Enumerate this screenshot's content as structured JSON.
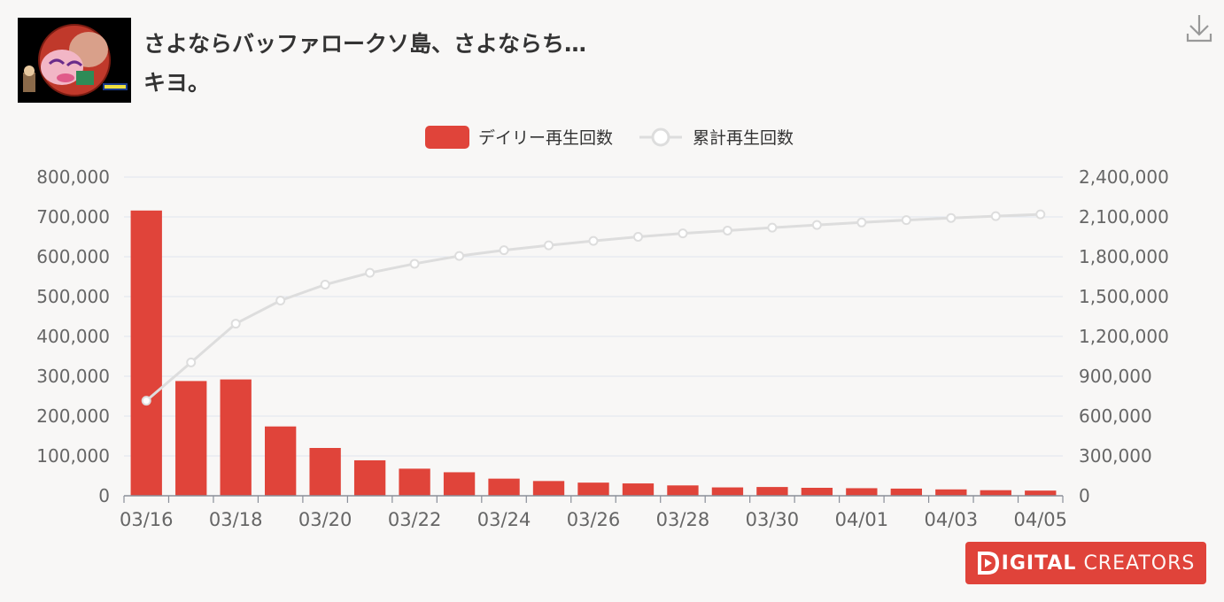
{
  "video": {
    "title_line1": "さよならバッファロークソ島、さよならち…",
    "title_line2": "キヨ。"
  },
  "icons": {
    "download": "download-icon",
    "thumbnail": "video-thumbnail"
  },
  "brand": {
    "logo_bold": "IGITAL",
    "logo_light": "CREATORS",
    "color": "#e0433a"
  },
  "chart_data": {
    "type": "bar",
    "categories": [
      "03/16",
      "03/17",
      "03/18",
      "03/19",
      "03/20",
      "03/21",
      "03/22",
      "03/23",
      "03/24",
      "03/25",
      "03/26",
      "03/27",
      "03/28",
      "03/29",
      "03/30",
      "03/31",
      "04/01",
      "04/02",
      "04/03",
      "04/04",
      "04/05"
    ],
    "x_tick_labels": [
      "03/16",
      "03/18",
      "03/20",
      "03/22",
      "03/24",
      "03/26",
      "03/28",
      "03/30",
      "04/01",
      "04/03",
      "04/05"
    ],
    "series": [
      {
        "name": "デイリー再生回数",
        "type": "bar",
        "axis": "left",
        "color": "#e0443a",
        "values": [
          716000,
          288000,
          292000,
          174000,
          120000,
          89000,
          68000,
          59000,
          43000,
          37000,
          33000,
          31000,
          26000,
          21000,
          22000,
          20000,
          19000,
          18000,
          16000,
          14000,
          13000
        ]
      },
      {
        "name": "累計再生回数",
        "type": "line",
        "axis": "right",
        "color": "#dddddd",
        "values": [
          716000,
          1004000,
          1296000,
          1470000,
          1590000,
          1679000,
          1747000,
          1806000,
          1849000,
          1886000,
          1919000,
          1950000,
          1976000,
          1997000,
          2019000,
          2039000,
          2058000,
          2076000,
          2092000,
          2106000,
          2119000
        ]
      }
    ],
    "left_axis": {
      "min": 0,
      "max": 800000,
      "ticks": [
        "0",
        "100,000",
        "200,000",
        "300,000",
        "400,000",
        "500,000",
        "600,000",
        "700,000",
        "800,000"
      ]
    },
    "right_axis": {
      "min": 0,
      "max": 2400000,
      "ticks": [
        "0",
        "300,000",
        "600,000",
        "900,000",
        "1,200,000",
        "1,500,000",
        "1,800,000",
        "2,100,000",
        "2,400,000"
      ]
    },
    "legend_position": "top-center",
    "grid": true
  }
}
